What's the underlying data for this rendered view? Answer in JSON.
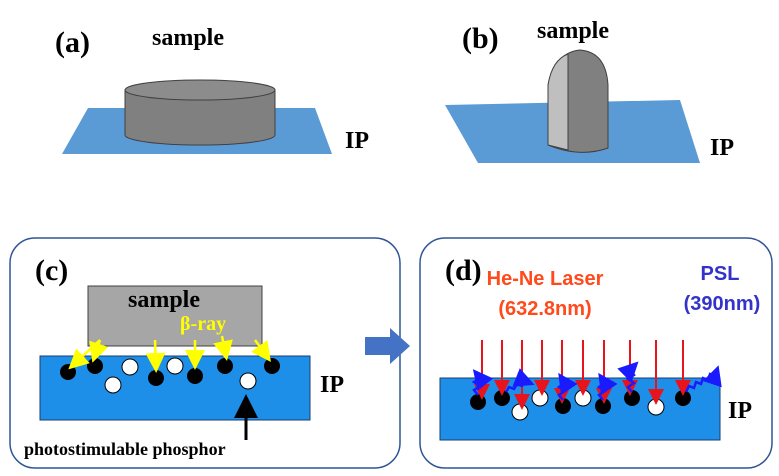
{
  "panel_a": {
    "label": "(a)",
    "sample": "sample",
    "ip": "IP"
  },
  "panel_b": {
    "label": "(b)",
    "sample": "sample",
    "ip": "IP"
  },
  "panel_c": {
    "label": "(c)",
    "sample": "sample",
    "ray": "β-ray",
    "ip": "IP",
    "phosphor": "photostimulable phosphor"
  },
  "panel_d": {
    "label": "(d)",
    "laser": "He-Ne Laser",
    "laser_wavelength": "(632.8nm)",
    "psl": "PSL",
    "psl_wavelength": "(390nm)",
    "ip": "IP"
  }
}
